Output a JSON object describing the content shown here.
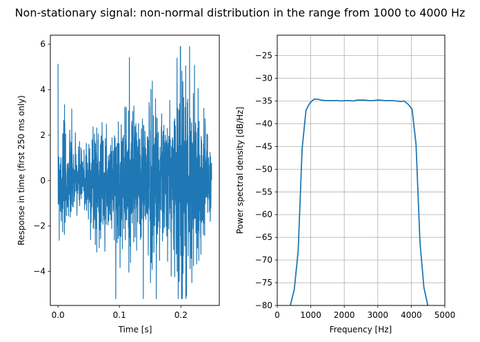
{
  "figure": {
    "title": "Non-stationary signal: non-normal distribution in the range from 1000 to 4000 Hz"
  },
  "chart_data": [
    {
      "type": "line",
      "title": "",
      "xlabel": "Time [s]",
      "ylabel": "Response in time (first 250 ms only)",
      "xlim": [
        -0.0125,
        0.2625
      ],
      "ylim": [
        -5.5,
        6.4
      ],
      "xticks": [
        0.0,
        0.1,
        0.2
      ],
      "xtick_labels": [
        "0.0",
        "0.1",
        "0.2"
      ],
      "yticks": [
        -4,
        -2,
        0,
        2,
        4,
        6
      ],
      "ytick_labels": [
        "−4",
        "−2",
        "0",
        "2",
        "4",
        "6"
      ],
      "grid": false,
      "series": [
        {
          "color": "#1f77b4",
          "x_start": 0.0,
          "x_end": 0.25,
          "envelope_note_free": true,
          "x": [
            0.0,
            0.02,
            0.04,
            0.06,
            0.08,
            0.1,
            0.115,
            0.13,
            0.15,
            0.165,
            0.18,
            0.2,
            0.22,
            0.24,
            0.25
          ],
          "amplitude": [
            2.4,
            1.8,
            1.2,
            2.6,
            1.4,
            2.6,
            3.2,
            2.2,
            3.6,
            3.0,
            2.6,
            5.4,
            3.4,
            2.0,
            1.4
          ],
          "max": 5.9,
          "min": -5.2
        }
      ]
    },
    {
      "type": "line",
      "title": "",
      "xlabel": "Frequency [Hz]",
      "ylabel": "Power spectral density [dB/Hz]",
      "xlim": [
        0,
        5000
      ],
      "ylim": [
        -80,
        -20.5
      ],
      "xticks": [
        0,
        1000,
        2000,
        3000,
        4000,
        5000
      ],
      "xtick_labels": [
        "0",
        "1000",
        "2000",
        "3000",
        "4000",
        "5000"
      ],
      "yticks": [
        -80,
        -75,
        -70,
        -65,
        -60,
        -55,
        -50,
        -45,
        -40,
        -35,
        -30,
        -25
      ],
      "ytick_labels": [
        "−80",
        "−75",
        "−70",
        "−65",
        "−60",
        "−55",
        "−50",
        "−45",
        "−40",
        "−35",
        "−30",
        "−25"
      ],
      "grid": true,
      "series": [
        {
          "color": "#1f77b4",
          "x": [
            391,
            508,
            625,
            742,
            859,
            977,
            1094,
            1211,
            1328,
            1445,
            1563,
            1680,
            1797,
            1914,
            2031,
            2148,
            2266,
            2383,
            2500,
            2617,
            2734,
            2852,
            2969,
            3086,
            3203,
            3320,
            3438,
            3555,
            3672,
            3789,
            3906,
            4023,
            4141,
            4258,
            4375,
            4492,
            4609
          ],
          "y": [
            -80.0,
            -76.5,
            -68.0,
            -45.5,
            -37.0,
            -35.4,
            -34.6,
            -34.6,
            -34.8,
            -34.9,
            -34.9,
            -34.9,
            -34.9,
            -35.0,
            -34.9,
            -34.9,
            -35.0,
            -34.8,
            -34.8,
            -34.8,
            -34.9,
            -34.9,
            -34.8,
            -34.8,
            -34.9,
            -34.9,
            -34.9,
            -35.0,
            -35.1,
            -35.0,
            -35.7,
            -36.8,
            -44.5,
            -66.0,
            -76.0,
            -80.0,
            -83.0
          ]
        }
      ]
    }
  ]
}
